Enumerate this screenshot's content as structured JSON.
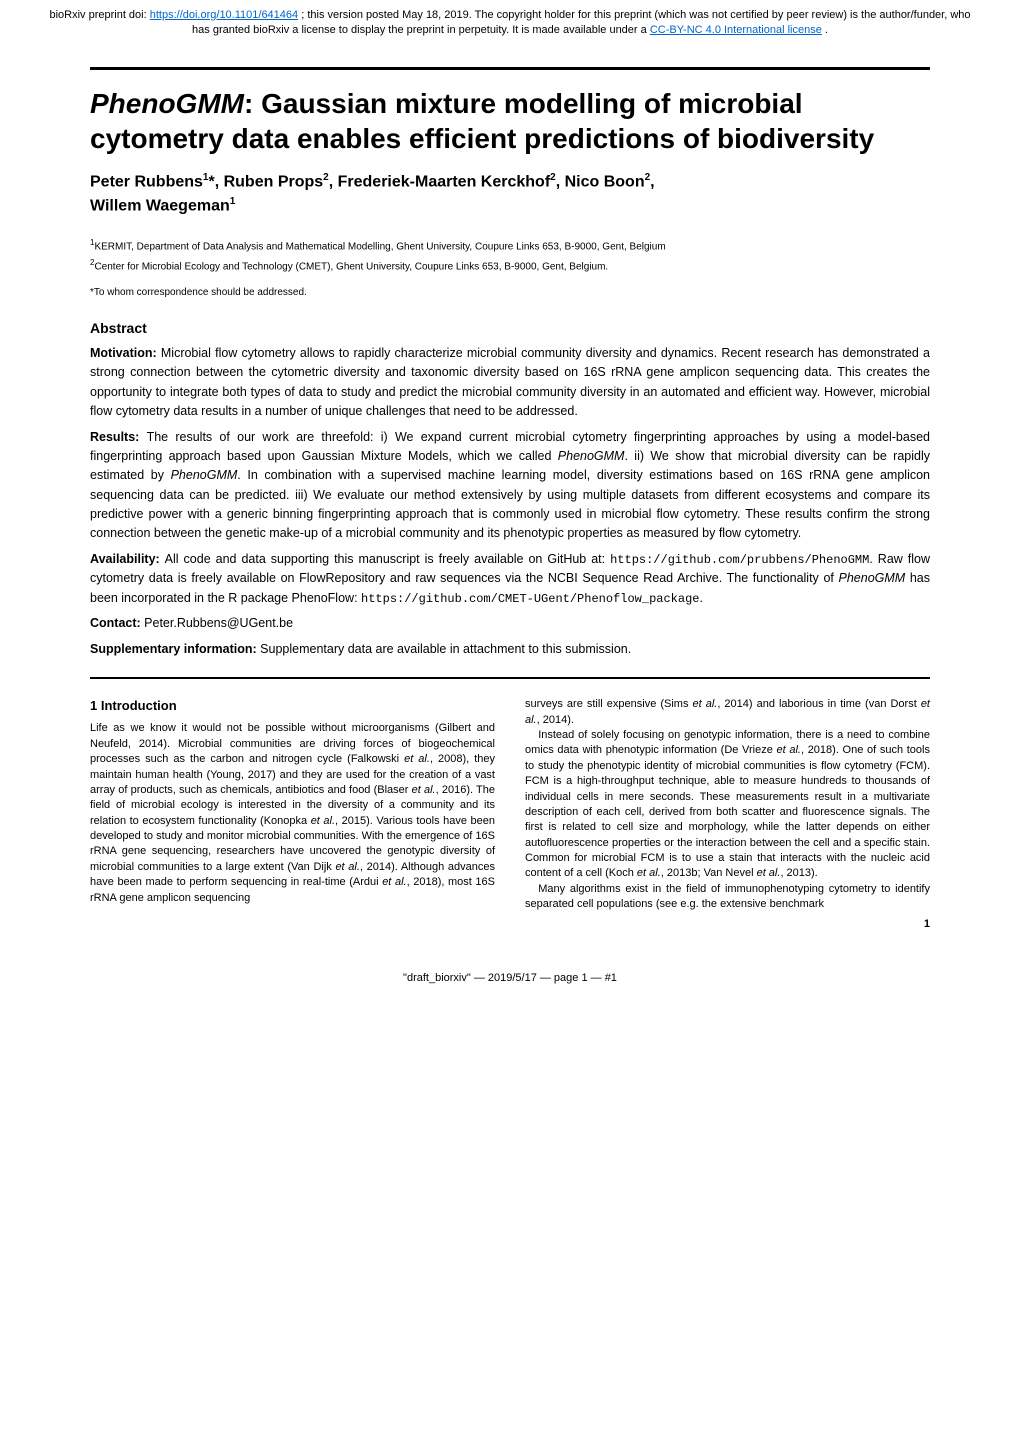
{
  "banner": {
    "prefix": "bioRxiv preprint doi: ",
    "doi_link": "https://doi.org/10.1101/641464",
    "middle": "; this version posted May 18, 2019. The copyright holder for this preprint (which was not certified by peer review) is the author/funder, who has granted bioRxiv a license to display the preprint in perpetuity. It is made available under a",
    "license_link": "CC-BY-NC 4.0 International license",
    "suffix": "."
  },
  "title": {
    "italic_part": "PhenoGMM",
    "rest": ": Gaussian mixture modelling of microbial cytometry data enables efficient predictions of biodiversity"
  },
  "authors_line1": "Peter Rubbens ¹*, Ruben Props ², Frederiek-Maarten Kerckhof ², Nico Boon ²,",
  "authors_line2": "Willem Waegeman ¹",
  "affiliation1_sup": "1",
  "affiliation1": "KERMIT, Department of Data Analysis and Mathematical Modelling, Ghent University, Coupure Links 653, B-9000, Gent, Belgium",
  "affiliation2_sup": "2",
  "affiliation2": "Center for Microbial Ecology and Technology (CMET), Ghent University, Coupure Links 653, B-9000, Gent, Belgium.",
  "correspondence": "*To whom correspondence should be addressed.",
  "abstract_heading": "Abstract",
  "abstract": {
    "motivation_label": "Motivation: ",
    "motivation_text": "Microbial flow cytometry allows to rapidly characterize microbial community diversity and dynamics. Recent research has demonstrated a strong connection between the cytometric diversity and taxonomic diversity based on 16S rRNA gene amplicon sequencing data. This creates the opportunity to integrate both types of data to study and predict the microbial community diversity in an automated and efficient way. However, microbial flow cytometry data results in a number of unique challenges that need to be addressed.",
    "results_label": "Results: ",
    "results_text_pre": "The results of our work are threefold: i) We expand current microbial cytometry fingerprinting approaches by using a model-based fingerprinting approach based upon Gaussian Mixture Models, which we called ",
    "results_italic1": "PhenoGMM",
    "results_text_mid": ". ii) We show that microbial diversity can be rapidly estimated by ",
    "results_italic2": "PhenoGMM",
    "results_text_post": ". In combination with a supervised machine learning model, diversity estimations based on 16S rRNA gene amplicon sequencing data can be predicted. iii) We evaluate our method extensively by using multiple datasets from different ecosystems and compare its predictive power with a generic binning fingerprinting approach that is commonly used in microbial flow cytometry. These results confirm the strong connection between the genetic make-up of a microbial community and its phenotypic properties as measured by flow cytometry.",
    "availability_label": "Availability: ",
    "availability_pre": "All code and data supporting this manuscript is freely available on GitHub at: ",
    "availability_url1": "https://github.com/prubbens/PhenoGMM",
    "availability_mid": ". Raw flow cytometry data is freely available on FlowRepository and raw sequences via the NCBI Sequence Read Archive. The functionality of ",
    "availability_italic": "PhenoGMM",
    "availability_mid2": " has been incorporated in the R package PhenoFlow: ",
    "availability_url2": "https://github.com/CMET-UGent/Phenoflow_package",
    "availability_post": ".",
    "contact_label": "Contact: ",
    "contact_text": "Peter.Rubbens@UGent.be",
    "supp_label": "Supplementary information: ",
    "supp_text": "Supplementary data are available in attachment to this submission."
  },
  "intro_heading": "1 Introduction",
  "col_left": {
    "p1_pre": "Life as we know it would not be possible without microorganisms (Gilbert and Neufeld, 2014). Microbial communities are driving forces of biogeochemical processes such as the carbon and nitrogen cycle (Falkowski ",
    "p1_ital1": "et al.",
    "p1_mid1": ", 2008), they maintain human health (Young, 2017) and they are used for the creation of a vast array of products, such as chemicals, antibiotics and food (Blaser ",
    "p1_ital2": "et al.",
    "p1_mid2": ", 2016). The field of microbial ecology is interested in the diversity of a community and its relation to ecosystem functionality (Konopka ",
    "p1_ital3": "et al.",
    "p1_mid3": ", 2015). Various tools have been developed to study and monitor microbial communities. With the emergence of 16S rRNA gene sequencing, researchers have uncovered the genotypic diversity of microbial communities to a large extent (Van Dijk ",
    "p1_ital4": "et al.",
    "p1_mid4": ", 2014). Although advances have been made to perform sequencing in real-time (Ardui ",
    "p1_ital5": "et al.",
    "p1_post": ", 2018), most 16S rRNA gene amplicon sequencing"
  },
  "col_right": {
    "p1_pre": "surveys are still expensive (Sims ",
    "p1_ital1": "et al.",
    "p1_mid": ", 2014) and laborious in time (van Dorst ",
    "p1_ital2": "et al.",
    "p1_post": ", 2014).",
    "p2_pre": "Instead of solely focusing on genotypic information, there is a need to combine omics data with phenotypic information (De Vrieze ",
    "p2_ital1": "et al.",
    "p2_mid1": ", 2018). One of such tools to study the phenotypic identity of microbial communities is flow cytometry (FCM). FCM is a high-throughput technique, able to measure hundreds to thousands of individual cells in mere seconds. These measurements result in a multivariate description of each cell, derived from both scatter and fluorescence signals. The first is related to cell size and morphology, while the latter depends on either autofluorescence properties or the interaction between the cell and a specific stain. Common for microbial FCM is to use a stain that interacts with the nucleic acid content of a cell (Koch ",
    "p2_ital2": "et al.",
    "p2_mid2": ", 2013b; Van Nevel ",
    "p2_ital3": "et al.",
    "p2_post": ", 2013).",
    "p3": "Many algorithms exist in the field of immunophenotyping cytometry to identify separated cell populations (see e.g. the extensive benchmark"
  },
  "page_num": "1",
  "footer": "\"draft_biorxiv\" — 2019/5/17 — page 1 — #1"
}
